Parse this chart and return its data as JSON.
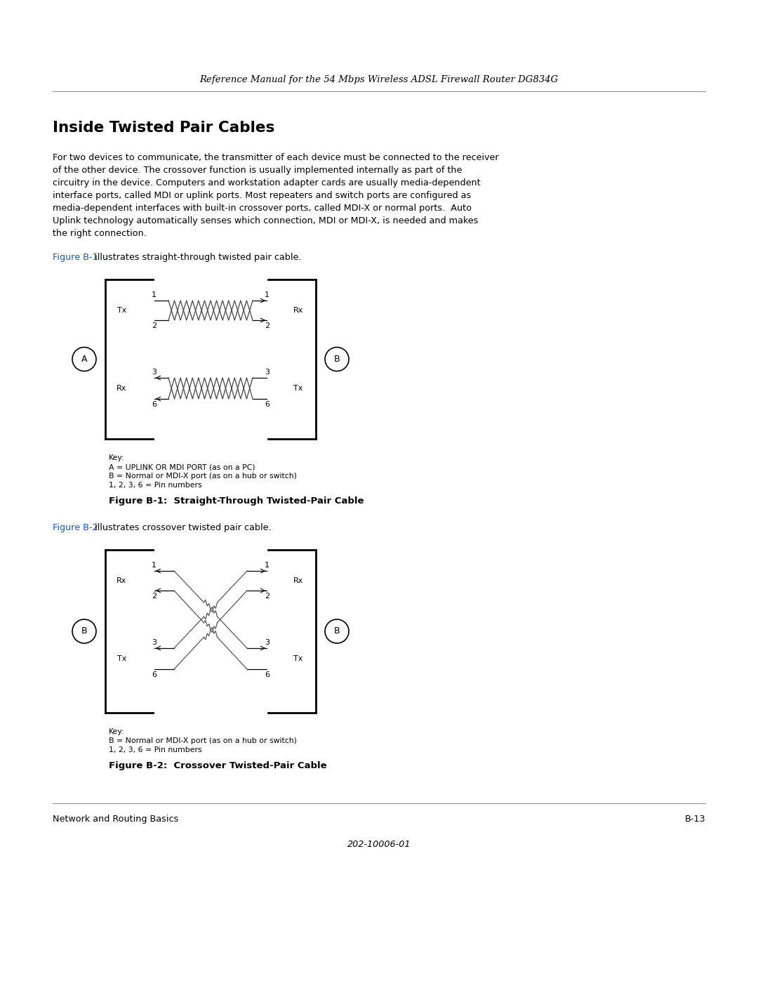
{
  "header_text": "Reference Manual for the 54 Mbps Wireless ADSL Firewall Router DG834G",
  "title": "Inside Twisted Pair Cables",
  "body_text": [
    "For two devices to communicate, the transmitter of each device must be connected to the receiver",
    "of the other device. The crossover function is usually implemented internally as part of the",
    "circuitry in the device. Computers and workstation adapter cards are usually media-dependent",
    "interface ports, called MDI or uplink ports. Most repeaters and switch ports are configured as",
    "media-dependent interfaces with built-in crossover ports, called MDI-X or normal ports.  Auto",
    "Uplink technology automatically senses which connection, MDI or MDI-X, is needed and makes",
    "the right connection."
  ],
  "fig1_ref": "Figure B-1",
  "fig1_ref_text": " illustrates straight-through twisted pair cable.",
  "fig1_caption": "Figure B-1:  Straight-Through Twisted-Pair Cable",
  "fig2_ref": "Figure B-2",
  "fig2_ref_text": " illustrates crossover twisted pair cable.",
  "fig2_caption": "Figure B-2:  Crossover Twisted-Pair Cable",
  "key1_lines": [
    "Key:",
    "A = UPLINK OR MDI PORT (as on a PC)",
    "B = Normal or MDI-X port (as on a hub or switch)",
    "1, 2, 3, 6 = Pin numbers"
  ],
  "key2_lines": [
    "Key:",
    "B = Normal or MDI-X port (as on a hub or switch)",
    "1, 2, 3, 6 = Pin numbers"
  ],
  "footer_left": "Network and Routing Basics",
  "footer_right": "B-13",
  "footer_center": "202-10006-01",
  "link_color": "#2255BB",
  "text_color": "#000000",
  "background_color": "#ffffff"
}
